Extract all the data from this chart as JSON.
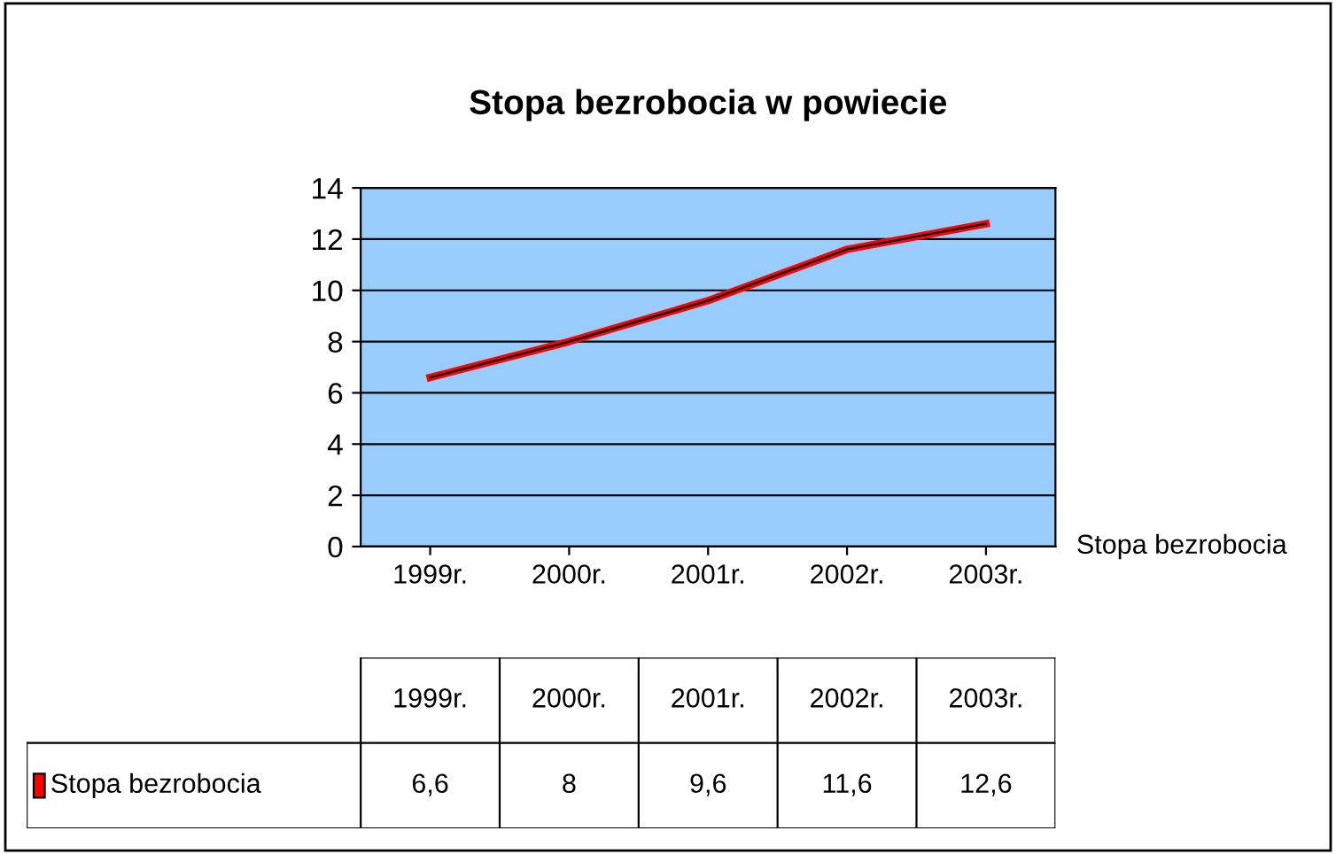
{
  "chart_data": {
    "type": "line",
    "title": "Stopa bezrobocia w powiecie",
    "categories": [
      "1999r.",
      "2000r.",
      "2001r.",
      "2002r.",
      "2003r."
    ],
    "series": [
      {
        "name": "Stopa bezrobocia",
        "color": "#ff0000",
        "values": [
          6.6,
          8,
          9.6,
          11.6,
          12.6
        ],
        "value_labels": [
          "6,6",
          "8",
          "9,6",
          "11,6",
          "12,6"
        ]
      }
    ],
    "ylim": [
      0,
      14
    ],
    "yticks": [
      0,
      2,
      4,
      6,
      8,
      10,
      12,
      14
    ],
    "grid": "y",
    "marker": "none",
    "line_style": "solid"
  }
}
